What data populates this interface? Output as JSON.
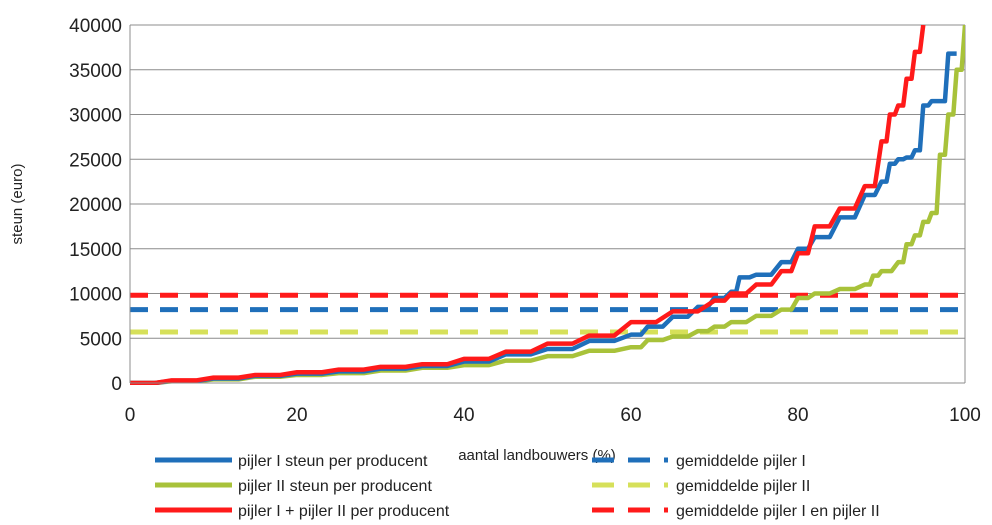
{
  "chart_data": {
    "type": "line",
    "title": "",
    "xlabel": "aantal landbouwers (%)",
    "ylabel": "steun  (euro)",
    "xlim": [
      0,
      100
    ],
    "ylim": [
      0,
      40000
    ],
    "xticks": [
      "0",
      "20",
      "40",
      "60",
      "80",
      "100"
    ],
    "yticks": [
      "0",
      "5000",
      "10000",
      "15000",
      "20000",
      "25000",
      "30000",
      "35000",
      "40000"
    ],
    "grid": "horizontal",
    "legend_position": "bottom",
    "series": [
      {
        "name": "pijler I steun per producent",
        "color": "#1f6fba",
        "style": "solid",
        "x": [
          0,
          5,
          10,
          15,
          20,
          25,
          30,
          35,
          40,
          45,
          50,
          55,
          60,
          62,
          65,
          68,
          70,
          72,
          73,
          75,
          78,
          80,
          82,
          85,
          88,
          90,
          91,
          92,
          93,
          94,
          95,
          96,
          97,
          98,
          99
        ],
        "y": [
          0,
          250,
          500,
          800,
          1050,
          1300,
          1600,
          1900,
          2400,
          3200,
          3800,
          4700,
          5400,
          6300,
          7400,
          8500,
          9500,
          10200,
          11800,
          12100,
          13500,
          15000,
          16300,
          18500,
          21000,
          22500,
          24500,
          25000,
          25200,
          26000,
          31000,
          31500,
          31500,
          36800,
          36800
        ]
      },
      {
        "name": "pijler II steun per producent",
        "color": "#a8c23a",
        "style": "solid",
        "x": [
          0,
          5,
          10,
          15,
          20,
          25,
          30,
          35,
          40,
          45,
          50,
          55,
          60,
          62,
          65,
          68,
          70,
          72,
          75,
          78,
          80,
          82,
          85,
          88,
          89,
          90,
          92,
          93,
          94,
          95,
          96,
          97,
          98,
          99,
          100
        ],
        "y": [
          0,
          200,
          400,
          700,
          900,
          1100,
          1400,
          1700,
          2000,
          2500,
          3000,
          3600,
          4000,
          4800,
          5200,
          5800,
          6300,
          6800,
          7500,
          8200,
          9500,
          10000,
          10500,
          11000,
          12000,
          12500,
          13500,
          15500,
          16500,
          18000,
          19000,
          25500,
          30000,
          35000,
          40000
        ]
      },
      {
        "name": "pijler I + pijler II per producent",
        "color": "#ff1a1a",
        "style": "solid",
        "x": [
          0,
          5,
          10,
          15,
          20,
          25,
          30,
          35,
          40,
          45,
          50,
          55,
          60,
          65,
          70,
          72,
          75,
          78,
          80,
          82,
          85,
          88,
          90,
          91,
          92,
          93,
          94,
          95
        ],
        "y": [
          0,
          300,
          600,
          900,
          1200,
          1500,
          1800,
          2100,
          2700,
          3500,
          4400,
          5300,
          6800,
          8000,
          9200,
          10000,
          11000,
          12500,
          14500,
          17500,
          19500,
          22000,
          27000,
          30000,
          31000,
          34000,
          37000,
          40000
        ]
      },
      {
        "name": "gemiddelde pijler I",
        "color": "#1f6fba",
        "style": "dashed",
        "x": [
          0,
          100
        ],
        "y": [
          8200,
          8200
        ]
      },
      {
        "name": "gemiddelde pijler II",
        "color": "#d6e05a",
        "style": "dashed",
        "x": [
          0,
          100
        ],
        "y": [
          5700,
          5700
        ]
      },
      {
        "name": "gemiddelde pijler I en pijler II",
        "color": "#ff1a1a",
        "style": "dashed",
        "x": [
          0,
          100
        ],
        "y": [
          9800,
          9800
        ]
      }
    ]
  }
}
